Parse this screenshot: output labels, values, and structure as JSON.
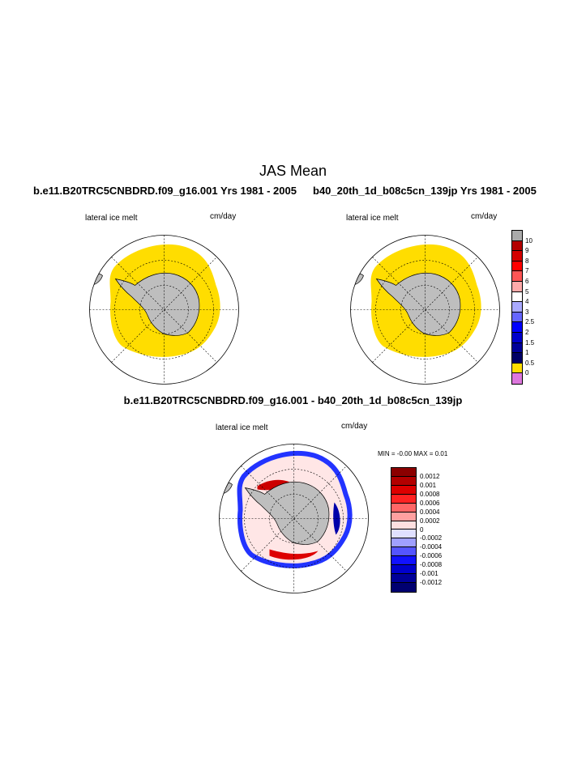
{
  "page": {
    "main_title": "JAS Mean",
    "left_title": "b.e11.B20TRC5CNBDRD.f09_g16.001  Yrs 1981 - 2005",
    "right_title": "b40_20th_1d_b08c5cn_139jp  Yrs 1981 - 2005",
    "diff_title": "b.e11.B20TRC5CNBDRD.f09_g16.001 - b40_20th_1d_b08c5cn_139jp"
  },
  "panels": {
    "left": {
      "variable": "lateral ice melt",
      "units": "cm/day"
    },
    "right": {
      "variable": "lateral ice melt",
      "units": "cm/day"
    },
    "diff": {
      "variable": "lateral ice melt",
      "units": "cm/day",
      "min_max": "MIN =   -0.00 MAX =    0.01"
    }
  },
  "colorbars": {
    "levels": {
      "labels": [
        "10",
        "9",
        "8",
        "7",
        "6",
        "5",
        "4",
        "3",
        "2.5",
        "2",
        "1.5",
        "1",
        "0.5",
        "0"
      ],
      "colors": [
        "#aaaaaa",
        "#b30000",
        "#d40000",
        "#ff0000",
        "#ff5555",
        "#ffaaaa",
        "#ffffff",
        "#aaaaff",
        "#6666ff",
        "#0000ff",
        "#0000cc",
        "#000099",
        "#000066",
        "#ffdd00",
        "#dd77dd"
      ]
    },
    "diff": {
      "labels": [
        "0.0012",
        "0.001",
        "0.0008",
        "0.0006",
        "0.0004",
        "0.0002",
        "0",
        "-0.0002",
        "-0.0004",
        "-0.0006",
        "-0.0008",
        "-0.001",
        "-0.0012"
      ],
      "colors": [
        "#8b0000",
        "#b30000",
        "#dd0000",
        "#ff2222",
        "#ff6666",
        "#ffa0a0",
        "#ffe0e0",
        "#e0e0ff",
        "#a0a0ff",
        "#5555ff",
        "#1111ff",
        "#0000cc",
        "#000099",
        "#000070"
      ]
    }
  },
  "colors": {
    "ice_melt": "#ffdd00",
    "land": "#bebebe"
  }
}
